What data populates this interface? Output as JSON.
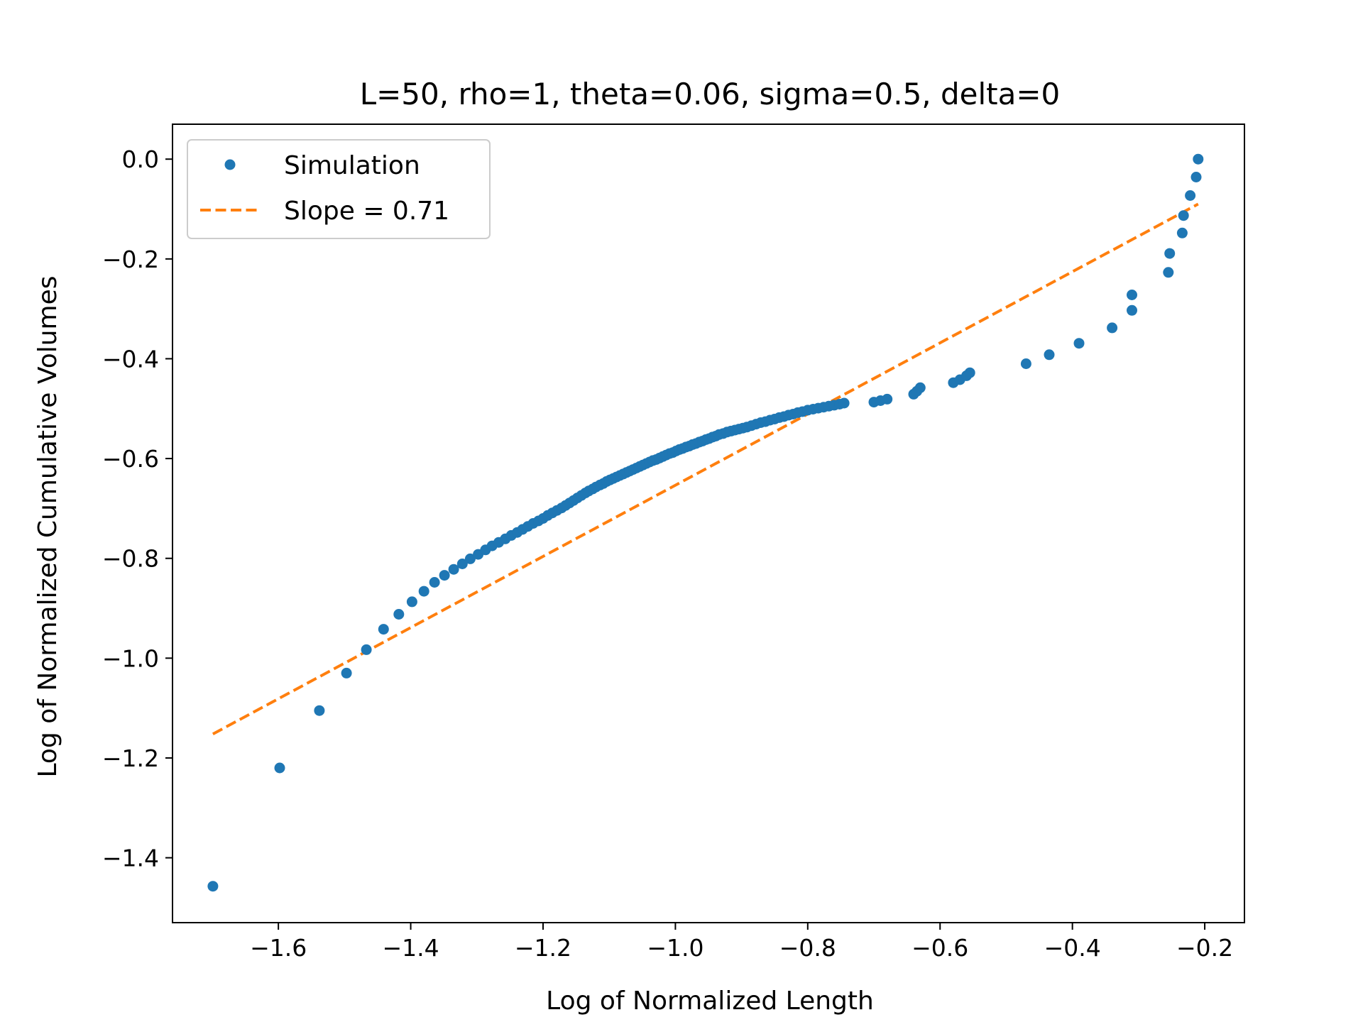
{
  "chart_data": {
    "type": "scatter",
    "title": "L=50, rho=1, theta=0.06, sigma=0.5, delta=0",
    "xlabel": "Log of Normalized Length",
    "ylabel": "Log of Normalized Cumulative Volumes",
    "xlim": [
      -1.76,
      -0.14
    ],
    "ylim": [
      -1.53,
      0.07
    ],
    "xticks": [
      -1.6,
      -1.4,
      -1.2,
      -1.0,
      -0.8,
      -0.6,
      -0.4,
      -0.2
    ],
    "xtick_labels": [
      "−1.6",
      "−1.4",
      "−1.2",
      "−1.0",
      "−0.8",
      "−0.6",
      "−0.4",
      "−0.2"
    ],
    "yticks": [
      0.0,
      -0.2,
      -0.4,
      -0.6,
      -0.8,
      -1.0,
      -1.2,
      -1.4
    ],
    "ytick_labels": [
      "0.0",
      "−0.2",
      "−0.4",
      "−0.6",
      "−0.8",
      "−1.0",
      "−1.2",
      "−1.4"
    ],
    "grid": false,
    "legend_position": "top-left",
    "series": [
      {
        "name": "Simulation",
        "style": "markers",
        "color": "#1f77b4",
        "x": [
          -1.699,
          -1.598,
          -1.538,
          -1.497,
          -1.467,
          -1.441,
          -1.418,
          -1.398,
          -1.38,
          -1.364,
          -1.349,
          -1.335,
          -1.322,
          -1.31,
          -1.298,
          -1.287,
          -1.277,
          -1.267,
          -1.257,
          -1.248,
          -1.239,
          -1.231,
          -1.223,
          -1.215,
          -1.207,
          -1.2,
          -1.193,
          -1.186,
          -1.179,
          -1.172,
          -1.166,
          -1.16,
          -1.154,
          -1.148,
          -1.142,
          -1.136,
          -1.131,
          -1.125,
          -1.12,
          -1.114,
          -1.109,
          -1.104,
          -1.099,
          -1.094,
          -1.089,
          -1.084,
          -1.079,
          -1.074,
          -1.069,
          -1.064,
          -1.059,
          -1.054,
          -1.049,
          -1.044,
          -1.039,
          -1.034,
          -1.029,
          -1.024,
          -1.019,
          -1.014,
          -1.009,
          -1.004,
          -0.999,
          -0.994,
          -0.989,
          -0.984,
          -0.979,
          -0.974,
          -0.969,
          -0.964,
          -0.959,
          -0.954,
          -0.949,
          -0.944,
          -0.939,
          -0.934,
          -0.928,
          -0.922,
          -0.916,
          -0.91,
          -0.904,
          -0.898,
          -0.892,
          -0.885,
          -0.878,
          -0.871,
          -0.864,
          -0.857,
          -0.85,
          -0.843,
          -0.836,
          -0.829,
          -0.822,
          -0.815,
          -0.808,
          -0.8,
          -0.792,
          -0.784,
          -0.776,
          -0.768,
          -0.76,
          -0.752,
          -0.745,
          -0.7,
          -0.69,
          -0.68,
          -0.64,
          -0.635,
          -0.63,
          -0.58,
          -0.57,
          -0.56,
          -0.555,
          -0.47,
          -0.435,
          -0.39,
          -0.34,
          -0.31,
          -0.31,
          -0.255,
          -0.253,
          -0.234,
          -0.232,
          -0.222,
          -0.213,
          -0.21
        ],
        "y": [
          -1.457,
          -1.22,
          -1.105,
          -1.03,
          -0.983,
          -0.942,
          -0.912,
          -0.887,
          -0.866,
          -0.848,
          -0.834,
          -0.822,
          -0.811,
          -0.801,
          -0.792,
          -0.783,
          -0.775,
          -0.768,
          -0.761,
          -0.754,
          -0.748,
          -0.742,
          -0.736,
          -0.73,
          -0.725,
          -0.72,
          -0.714,
          -0.709,
          -0.704,
          -0.699,
          -0.694,
          -0.689,
          -0.684,
          -0.679,
          -0.674,
          -0.669,
          -0.665,
          -0.661,
          -0.657,
          -0.653,
          -0.65,
          -0.646,
          -0.643,
          -0.64,
          -0.637,
          -0.634,
          -0.631,
          -0.628,
          -0.625,
          -0.622,
          -0.619,
          -0.616,
          -0.613,
          -0.61,
          -0.607,
          -0.604,
          -0.602,
          -0.599,
          -0.596,
          -0.593,
          -0.59,
          -0.588,
          -0.585,
          -0.582,
          -0.58,
          -0.577,
          -0.575,
          -0.572,
          -0.57,
          -0.567,
          -0.565,
          -0.562,
          -0.56,
          -0.557,
          -0.555,
          -0.552,
          -0.55,
          -0.547,
          -0.545,
          -0.543,
          -0.541,
          -0.539,
          -0.537,
          -0.534,
          -0.531,
          -0.528,
          -0.526,
          -0.523,
          -0.521,
          -0.518,
          -0.516,
          -0.513,
          -0.511,
          -0.508,
          -0.506,
          -0.503,
          -0.501,
          -0.499,
          -0.497,
          -0.495,
          -0.493,
          -0.491,
          -0.489,
          -0.487,
          -0.484,
          -0.481,
          -0.471,
          -0.465,
          -0.458,
          -0.448,
          -0.442,
          -0.434,
          -0.428,
          -0.41,
          -0.392,
          -0.369,
          -0.338,
          -0.303,
          -0.272,
          -0.227,
          -0.189,
          -0.148,
          -0.113,
          -0.073,
          -0.036,
          0.0
        ]
      },
      {
        "name": "Slope = 0.71",
        "style": "dashed-line",
        "color": "#ff7f0e",
        "x": [
          -1.699,
          -0.21
        ],
        "y": [
          -1.152,
          -0.09
        ]
      }
    ]
  }
}
